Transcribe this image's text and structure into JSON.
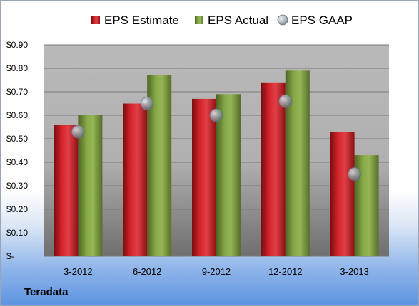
{
  "company": "Teradata",
  "colors": {
    "estimate": "#c0161d",
    "actual": "#76963a",
    "gaap": "#a8b4c4"
  },
  "chart_data": {
    "type": "bar",
    "categories": [
      "3-2012",
      "6-2012",
      "9-2012",
      "12-2012",
      "3-2013"
    ],
    "series": [
      {
        "name": "EPS Estimate",
        "values": [
          0.56,
          0.65,
          0.67,
          0.74,
          0.53
        ]
      },
      {
        "name": "EPS Actual",
        "values": [
          0.6,
          0.77,
          0.69,
          0.79,
          0.43
        ]
      },
      {
        "name": "EPS GAAP",
        "kind": "marker",
        "values": [
          0.53,
          0.65,
          0.6,
          0.66,
          0.35
        ]
      }
    ],
    "ylim": [
      0,
      0.9
    ],
    "yticks": [
      0,
      0.1,
      0.2,
      0.3,
      0.4,
      0.5,
      0.6,
      0.7,
      0.8,
      0.9
    ],
    "ytick_labels": [
      "$-",
      "$0.10",
      "$0.20",
      "$0.30",
      "$0.40",
      "$0.50",
      "$0.60",
      "$0.70",
      "$0.80",
      "$0.90"
    ],
    "grid": true,
    "legend_position": "top"
  }
}
